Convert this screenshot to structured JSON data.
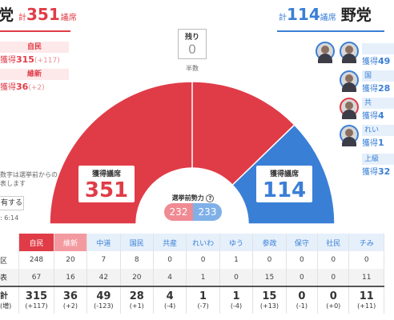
{
  "header": {
    "ruling": {
      "name": "党",
      "prefix": "計",
      "seats": "351",
      "unit": "議席"
    },
    "opposition": {
      "prefix": "計",
      "seats": "114",
      "unit": "議席",
      "name": "野党"
    }
  },
  "left_parties": [
    {
      "label": "自民",
      "prefix": "獲得",
      "value": "315",
      "delta": "(+117)"
    },
    {
      "label": "維新",
      "prefix": "獲得",
      "value": "36",
      "delta": "(+2)"
    }
  ],
  "right_parties": [
    {
      "label": "",
      "value_prefix": "獲得",
      "value": "49"
    },
    {
      "label": "国",
      "value_prefix": "獲得",
      "value": "28"
    },
    {
      "label": "共",
      "value_prefix": "獲得",
      "value": "4"
    },
    {
      "label": "れい",
      "value_prefix": "獲得",
      "value": "1"
    },
    {
      "label": "上級",
      "value_prefix": "獲得",
      "value": "32"
    }
  ],
  "remaining": {
    "label": "残り",
    "value": "0"
  },
  "majority_label": "半数",
  "ruling_box": {
    "label": "獲得議席",
    "value": "351"
  },
  "opposition_box": {
    "label": "獲得議席",
    "value": "114"
  },
  "pre_election": {
    "label": "選挙前勢力",
    "ruling": "232",
    "opposition": "233"
  },
  "notes": [
    "数字は選挙前からの",
    "表します"
  ],
  "share_label": "有する",
  "time": ": 6:14",
  "colors": {
    "ruling": "#e03c47",
    "opposition": "#3a7fd6",
    "ruling_light": "#f39aa0",
    "opposition_light": "#7fb0e8"
  },
  "table": {
    "parties": [
      "自民",
      "維新",
      "中道",
      "国民",
      "共産",
      "れいわ",
      "ゆう",
      "参政",
      "保守",
      "社民",
      "チみ"
    ],
    "rows": [
      {
        "label": "区",
        "values": [
          "248",
          "20",
          "7",
          "8",
          "0",
          "0",
          "1",
          "0",
          "0",
          "0",
          "0"
        ]
      },
      {
        "label": "表",
        "values": [
          "67",
          "16",
          "42",
          "20",
          "4",
          "1",
          "0",
          "15",
          "0",
          "0",
          "11"
        ]
      }
    ],
    "total": {
      "label": "計",
      "sub": "(増)",
      "values": [
        "315",
        "36",
        "49",
        "28",
        "4",
        "1",
        "1",
        "15",
        "0",
        "0",
        "11"
      ],
      "deltas": [
        "(+117)",
        "(+2)",
        "(-123)",
        "(+1)",
        "(-4)",
        "(-7)",
        "(-4)",
        "(+13)",
        "(-1)",
        "(+0)",
        "(+11)"
      ]
    }
  }
}
